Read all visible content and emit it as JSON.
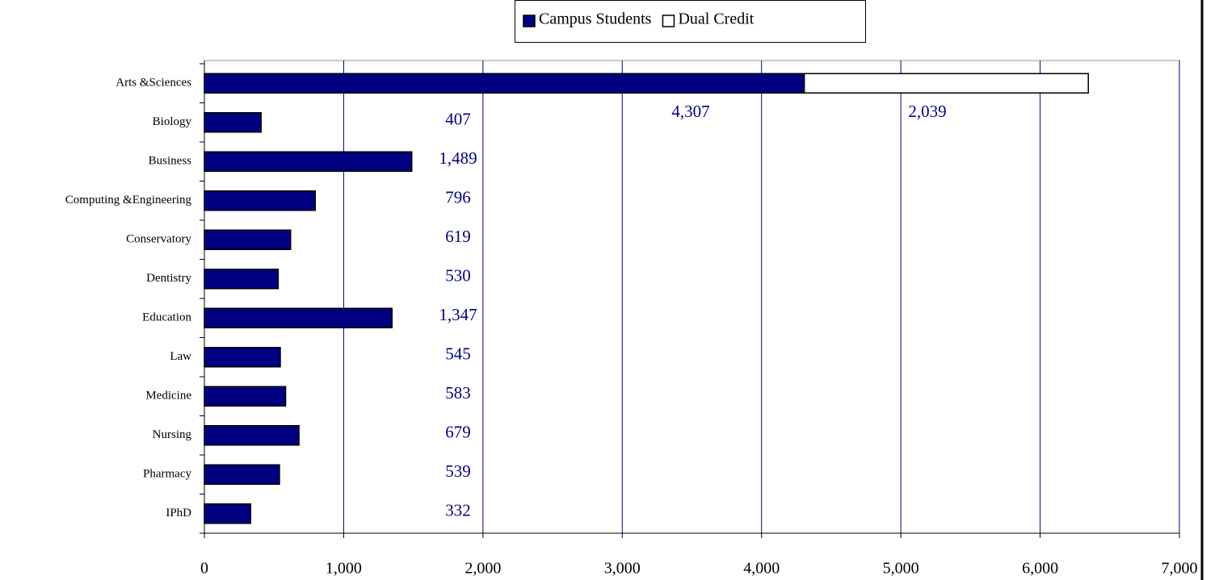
{
  "chart_data": {
    "type": "stacked-bar-horizontal",
    "categories": [
      "Arts &Sciences",
      "Biology",
      "Business",
      "Computing &Engineering",
      "Conservatory",
      "Dentistry",
      "Education",
      "Law",
      "Medicine",
      "Nursing",
      "Pharmacy",
      "IPhD"
    ],
    "series": [
      {
        "name": "Campus Students",
        "color": "#000080",
        "values": [
          4307,
          407,
          1489,
          796,
          619,
          530,
          1347,
          545,
          583,
          679,
          539,
          332
        ],
        "value_labels": [
          "4,307",
          "407",
          "1,489",
          "796",
          "619",
          "530",
          "1,347",
          "545",
          "583",
          "679",
          "539",
          "332"
        ]
      },
      {
        "name": "Dual Credit",
        "color": "#ffffff",
        "values": [
          2039,
          null,
          null,
          null,
          null,
          null,
          null,
          null,
          null,
          null,
          null,
          null
        ],
        "value_labels": [
          "2,039",
          null,
          null,
          null,
          null,
          null,
          null,
          null,
          null,
          null,
          null,
          null
        ]
      }
    ],
    "xlim": [
      0,
      7000
    ],
    "xticks": [
      0,
      {
        "value": 1000,
        "label": "1,000"
      },
      {
        "value": 2000,
        "label": "2,000"
      },
      {
        "value": 3000,
        "label": "3,000"
      },
      {
        "value": 4000,
        "label": "4,000"
      },
      {
        "value": 5000,
        "label": "5,000"
      },
      {
        "value": 6000,
        "label": "6,000"
      },
      {
        "value": 7000,
        "label": "7,000"
      }
    ],
    "grid": true,
    "legend": "top"
  }
}
